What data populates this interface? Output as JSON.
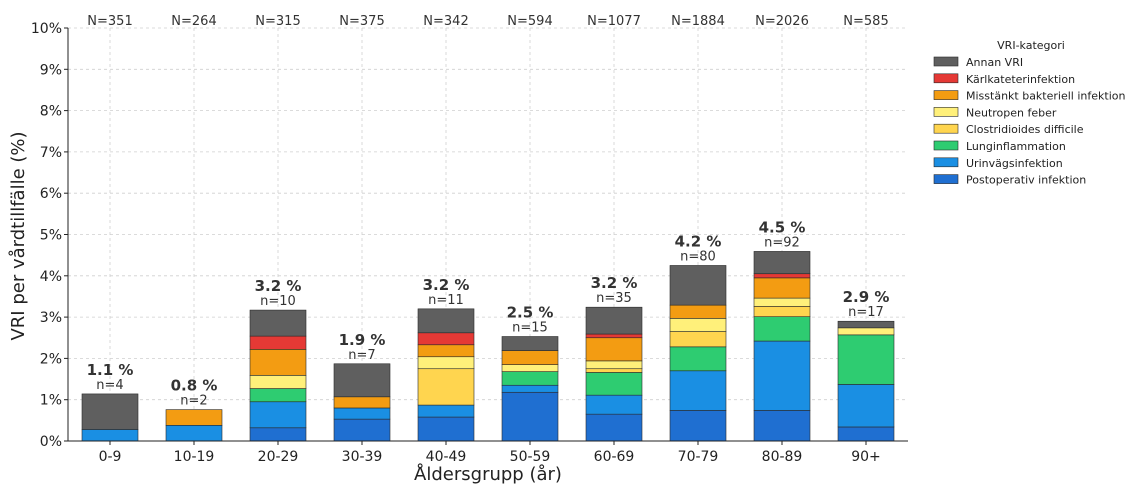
{
  "chart_data": {
    "type": "bar",
    "stacked": true,
    "xlabel": "Åldersgrupp (år)",
    "ylabel": "VRI per vårdtillfälle (%)",
    "ylim": [
      0,
      10
    ],
    "yticks": [
      "0%",
      "1%",
      "2%",
      "3%",
      "4%",
      "5%",
      "6%",
      "7%",
      "8%",
      "9%",
      "10%"
    ],
    "grid": true,
    "legend_position": "top-right",
    "legend_title": "VRI-kategori",
    "categories": [
      "0-9",
      "10-19",
      "20-29",
      "30-39",
      "40-49",
      "50-59",
      "60-69",
      "70-79",
      "80-89",
      "90+"
    ],
    "totals_N": [
      "N=351",
      "N=264",
      "N=315",
      "N=375",
      "N=342",
      "N=594",
      "N=1077",
      "N=1884",
      "N=2026",
      "N=585"
    ],
    "bar_pct_labels": [
      "1.1 %",
      "0.8 %",
      "3.2 %",
      "1.9 %",
      "3.2 %",
      "2.5 %",
      "3.2 %",
      "4.2 %",
      "4.5 %",
      "2.9 %"
    ],
    "bar_n_labels": [
      "n=4",
      "n=2",
      "n=10",
      "n=7",
      "n=11",
      "n=15",
      "n=35",
      "n=80",
      "n=92",
      "n=17"
    ],
    "series": [
      {
        "name": "Postoperativ infektion",
        "color": "#1f6fd1",
        "values": [
          0,
          0,
          0.32,
          0.53,
          0.58,
          1.18,
          0.65,
          0.74,
          0.74,
          0.34
        ]
      },
      {
        "name": "Urinvägsinfektion",
        "color": "#1a8fe3",
        "values": [
          0.28,
          0.38,
          0.63,
          0.27,
          0.29,
          0.17,
          0.46,
          0.96,
          1.68,
          1.03
        ]
      },
      {
        "name": "Lunginflammation",
        "color": "#2ecc71",
        "values": [
          0,
          0,
          0.32,
          0,
          0,
          0.33,
          0.55,
          0.58,
          0.59,
          1.2
        ]
      },
      {
        "name": "Clostridioides difficile",
        "color": "#ffd54f",
        "values": [
          0,
          0,
          0,
          0,
          0.88,
          0,
          0.09,
          0.37,
          0.25,
          0
        ]
      },
      {
        "name": "Neutropen feber",
        "color": "#fff07a",
        "values": [
          0,
          0,
          0.32,
          0,
          0.29,
          0.17,
          0.19,
          0.32,
          0.2,
          0.17
        ]
      },
      {
        "name": "Misstänkt bakteriell infektion",
        "color": "#f39c12",
        "values": [
          0,
          0.38,
          0.63,
          0.27,
          0.29,
          0.34,
          0.56,
          0.32,
          0.49,
          0
        ]
      },
      {
        "name": "Kärlkateterinfektion",
        "color": "#e53935",
        "values": [
          0,
          0,
          0.32,
          0,
          0.29,
          0,
          0.09,
          0,
          0.1,
          0
        ]
      },
      {
        "name": "Annan VRI",
        "color": "#5f5f5f",
        "values": [
          0.86,
          0,
          0.63,
          0.8,
          0.58,
          0.34,
          0.65,
          0.96,
          0.54,
          0.16
        ]
      }
    ]
  }
}
